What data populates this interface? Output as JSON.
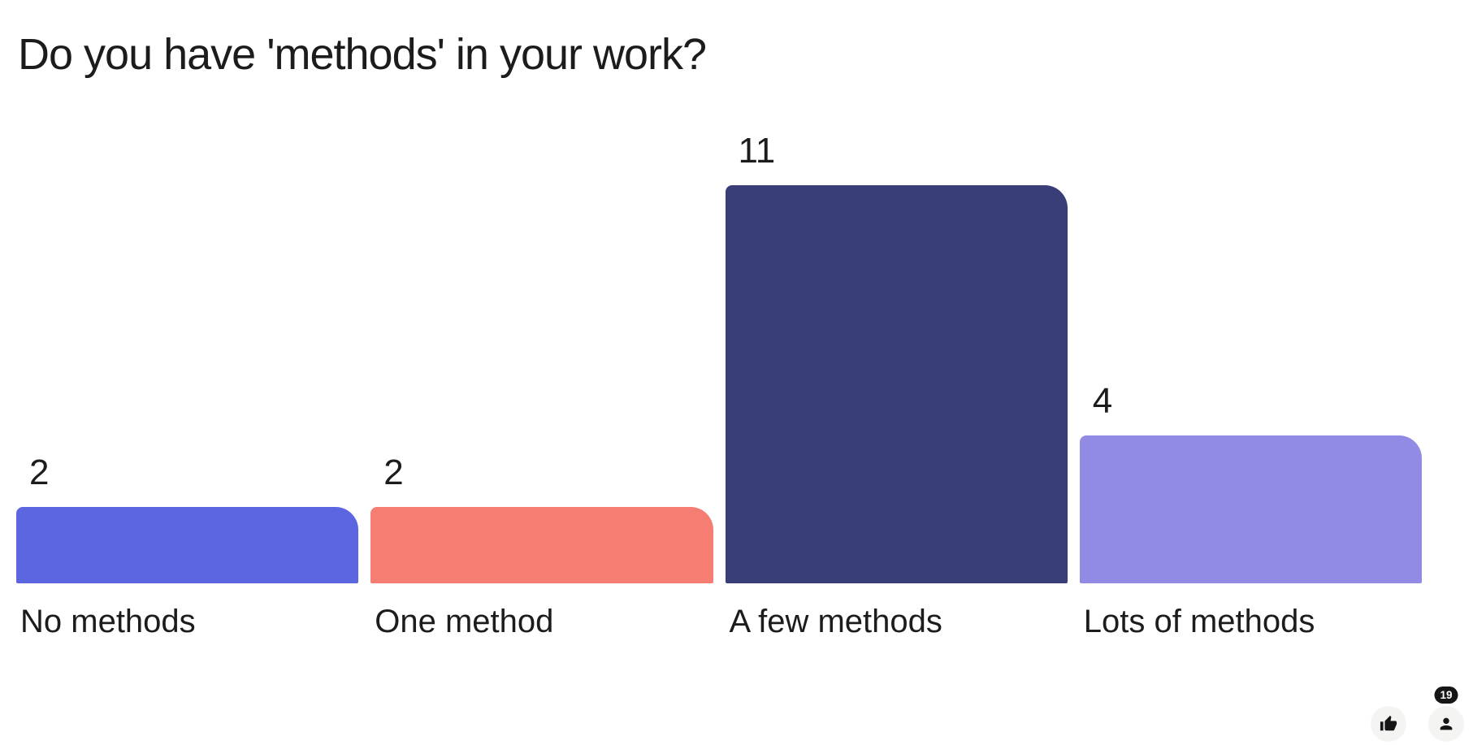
{
  "chart_data": {
    "type": "bar",
    "title": "Do you have 'methods' in your work?",
    "categories": [
      "No methods",
      "One method",
      "A few methods",
      "Lots of methods"
    ],
    "values": [
      2,
      2,
      11,
      4
    ],
    "bar_colors": [
      "#5D66E1",
      "#F57D72",
      "#393E78",
      "#928BE6"
    ],
    "ylabel": "",
    "xlabel": "",
    "ylim": [
      0,
      11
    ],
    "grid": false,
    "legend": "none",
    "value_label_position": "above-bar-left"
  },
  "reactions": {
    "like_button": {
      "icon": "thumbs-up"
    },
    "participants": {
      "icon": "person",
      "count": "19"
    }
  },
  "colors": {
    "background": "#FFFFFF",
    "text": "#1C1C1C",
    "reaction_circle_bg": "#F4F4F3",
    "badge_bg": "#161616",
    "badge_text": "#FFFFFF"
  }
}
